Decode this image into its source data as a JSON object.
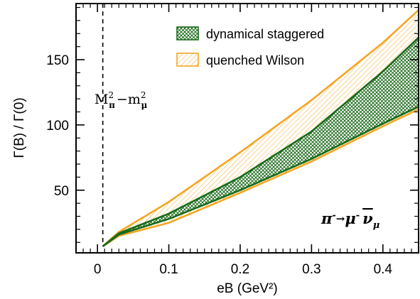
{
  "chart_data": {
    "type": "area",
    "xlabel": "eB  (GeV²)",
    "ylabel": "Γ(B)  /  Γ(0)",
    "xlim": [
      -0.03,
      0.45
    ],
    "ylim": [
      2,
      193
    ],
    "xticks": [
      "0",
      "0.1",
      "0.2",
      "0.3",
      "0.4"
    ],
    "xtick_values": [
      0,
      0.1,
      0.2,
      0.3,
      0.4
    ],
    "yticks": [
      "50",
      "100",
      "150"
    ],
    "ytick_values": [
      50,
      100,
      150
    ],
    "grid": false,
    "legend_position": "top-center",
    "series": [
      {
        "name": "dynamical staggered",
        "color": "#1a6b1a",
        "hatch": "cross-hatch",
        "x": [
          0.0075,
          0.03,
          0.1,
          0.2,
          0.3,
          0.4,
          0.45
        ],
        "lower": [
          7,
          16,
          28,
          50,
          74,
          101,
          114
        ],
        "upper": [
          7,
          17,
          32,
          60,
          95,
          141,
          167
        ]
      },
      {
        "name": "quenched Wilson",
        "color": "#f5a623",
        "hatch": "diagonal",
        "x": [
          0.0075,
          0.03,
          0.1,
          0.2,
          0.3,
          0.4,
          0.45
        ],
        "lower": [
          7,
          15,
          25,
          48,
          72,
          99,
          112
        ],
        "upper": [
          7,
          18,
          41,
          79,
          119,
          163,
          188
        ]
      }
    ],
    "annotations": {
      "threshold_line_x": 0.0075,
      "threshold_base": "M",
      "threshold_sub1": "π",
      "threshold_sup1": "2",
      "threshold_minus": "−",
      "threshold_base2": "m",
      "threshold_sub2": "μ",
      "threshold_sup2": "2",
      "process_pi": "π",
      "process_minus1": "-",
      "process_arrow": "→",
      "process_mu": "μ",
      "process_minus2": "-",
      "process_nu": "ν",
      "process_nu_sub": "μ"
    }
  }
}
